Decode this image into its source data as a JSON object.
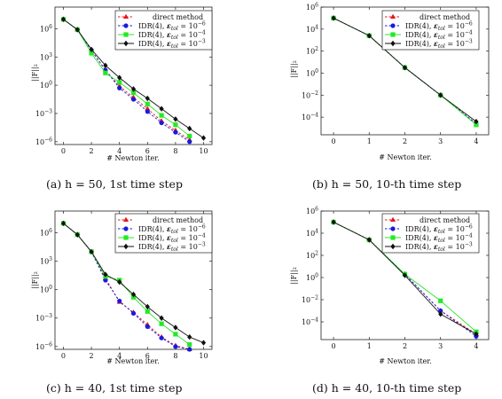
{
  "chart_data": [
    {
      "type": "line",
      "caption": "(a) h = 50, 1st time step",
      "xlabel": "# Newton iter.",
      "ylabel": "||F||₂",
      "yscale": "log",
      "xlim": [
        -0.6,
        10.6
      ],
      "ylim_exp": [
        -6.3,
        8.3
      ],
      "xticks": [
        0,
        2,
        4,
        6,
        8,
        10
      ],
      "yticks": [
        "10^-6",
        "10^-3",
        "10^0",
        "10^3",
        "10^6"
      ],
      "legend_position": "top-right",
      "series": [
        {
          "name": "direct method",
          "x": [
            0,
            1,
            2,
            3,
            4,
            5,
            6,
            7,
            8,
            9
          ],
          "log10_y": [
            7.0,
            5.9,
            3.7,
            1.6,
            -0.1,
            -1.3,
            -2.5,
            -3.8,
            -4.8,
            -5.8
          ]
        },
        {
          "name": "IDR(4), ε_tol = 10^-6",
          "x": [
            0,
            1,
            2,
            3,
            4,
            5,
            6,
            7,
            8,
            9
          ],
          "log10_y": [
            7.0,
            5.9,
            3.7,
            1.6,
            -0.3,
            -1.5,
            -2.8,
            -4.0,
            -5.0,
            -6.0
          ]
        },
        {
          "name": "IDR(4), ε_tol = 10^-4",
          "x": [
            0,
            1,
            2,
            3,
            4,
            5,
            6,
            7,
            8,
            9
          ],
          "log10_y": [
            7.0,
            5.9,
            3.4,
            1.3,
            0.3,
            -0.8,
            -2.0,
            -3.2,
            -4.2,
            -5.4
          ]
        },
        {
          "name": "IDR(4), ε_tol = 10^-3",
          "x": [
            0,
            1,
            2,
            3,
            4,
            5,
            6,
            7,
            8,
            9,
            10
          ],
          "log10_y": [
            7.0,
            5.9,
            3.8,
            2.1,
            0.8,
            -0.4,
            -1.4,
            -2.5,
            -3.6,
            -4.6,
            -5.6
          ]
        }
      ]
    },
    {
      "type": "line",
      "caption": "(b) h = 50, 10-th time step",
      "xlabel": "# Newton iter.",
      "ylabel": "||F||₂",
      "yscale": "log",
      "xlim": [
        -0.35,
        4.35
      ],
      "ylim_exp": [
        -5.6,
        6.0
      ],
      "xticks": [
        0,
        1,
        2,
        3,
        4
      ],
      "yticks": [
        "10^-4",
        "10^-2",
        "10^0",
        "10^2",
        "10^4",
        "10^6"
      ],
      "legend_position": "top-right",
      "series": [
        {
          "name": "direct method",
          "x": [
            0,
            1,
            2,
            3,
            4
          ],
          "log10_y": [
            5.0,
            3.4,
            0.5,
            -2.0,
            -4.6
          ]
        },
        {
          "name": "IDR(4), ε_tol = 10^-6",
          "x": [
            0,
            1,
            2,
            3,
            4
          ],
          "log10_y": [
            5.0,
            3.4,
            0.5,
            -2.0,
            -4.6
          ]
        },
        {
          "name": "IDR(4), ε_tol = 10^-4",
          "x": [
            0,
            1,
            2,
            3,
            4
          ],
          "log10_y": [
            5.0,
            3.4,
            0.5,
            -2.0,
            -4.7
          ]
        },
        {
          "name": "IDR(4), ε_tol = 10^-3",
          "x": [
            0,
            1,
            2,
            3,
            4
          ],
          "log10_y": [
            5.0,
            3.4,
            0.5,
            -2.0,
            -4.4
          ]
        }
      ]
    },
    {
      "type": "line",
      "caption": "(c) h = 40, 1st time step",
      "xlabel": "# Newton iter.",
      "ylabel": "||F||₂",
      "yscale": "log",
      "xlim": [
        -0.6,
        10.6
      ],
      "ylim_exp": [
        -6.3,
        8.3
      ],
      "xticks": [
        0,
        2,
        4,
        6,
        8,
        10
      ],
      "yticks": [
        "10^-6",
        "10^-3",
        "10^0",
        "10^3",
        "10^6"
      ],
      "legend_position": "top-right",
      "series": [
        {
          "name": "direct method",
          "x": [
            0,
            1,
            2,
            3,
            4,
            5,
            6,
            7,
            8,
            9
          ],
          "log10_y": [
            7.0,
            5.8,
            4.0,
            1.2,
            -1.3,
            -2.4,
            -3.7,
            -5.0,
            -5.9,
            -6.3
          ]
        },
        {
          "name": "IDR(4), ε_tol = 10^-6",
          "x": [
            0,
            1,
            2,
            3,
            4,
            5,
            6,
            7,
            8,
            9
          ],
          "log10_y": [
            7.0,
            5.8,
            4.0,
            1.0,
            -1.2,
            -2.5,
            -3.9,
            -5.1,
            -6.0,
            -6.3
          ]
        },
        {
          "name": "IDR(4), ε_tol = 10^-4",
          "x": [
            0,
            1,
            2,
            3,
            4,
            5,
            6,
            7,
            8,
            9
          ],
          "log10_y": [
            7.0,
            5.8,
            4.0,
            1.4,
            1.0,
            -0.8,
            -2.3,
            -3.6,
            -4.7,
            -5.8
          ]
        },
        {
          "name": "IDR(4), ε_tol = 10^-3",
          "x": [
            0,
            1,
            2,
            3,
            4,
            5,
            6,
            7,
            8,
            9,
            10
          ],
          "log10_y": [
            7.0,
            5.8,
            4.0,
            1.6,
            0.8,
            -0.5,
            -1.8,
            -3.0,
            -4.0,
            -5.0,
            -5.6
          ]
        }
      ]
    },
    {
      "type": "line",
      "caption": "(d) h = 40, 10-th time step",
      "xlabel": "# Newton iter.",
      "ylabel": "||F||₂",
      "yscale": "log",
      "xlim": [
        -0.35,
        4.35
      ],
      "ylim_exp": [
        -5.6,
        6.0
      ],
      "xticks": [
        0,
        1,
        2,
        3,
        4
      ],
      "yticks": [
        "10^-4",
        "10^-2",
        "10^0",
        "10^2",
        "10^4",
        "10^6"
      ],
      "legend_position": "top-right",
      "series": [
        {
          "name": "direct method",
          "x": [
            0,
            1,
            2,
            3,
            4
          ],
          "log10_y": [
            5.0,
            3.4,
            0.3,
            -3.0,
            -5.1
          ]
        },
        {
          "name": "IDR(4), ε_tol = 10^-6",
          "x": [
            0,
            1,
            2,
            3,
            4
          ],
          "log10_y": [
            5.0,
            3.4,
            0.3,
            -3.0,
            -5.3
          ]
        },
        {
          "name": "IDR(4), ε_tol = 10^-4",
          "x": [
            0,
            1,
            2,
            3,
            4
          ],
          "log10_y": [
            5.0,
            3.4,
            0.3,
            -2.1,
            -4.9
          ]
        },
        {
          "name": "IDR(4), ε_tol = 10^-3",
          "x": [
            0,
            1,
            2,
            3,
            4
          ],
          "log10_y": [
            5.0,
            3.4,
            0.2,
            -3.3,
            -5.1
          ]
        }
      ]
    }
  ],
  "style": {
    "series_colors": [
      "#e8141a",
      "#1a1adf",
      "#25e825",
      "#111111"
    ],
    "series_markers": [
      "triangle",
      "circle",
      "square",
      "diamond"
    ],
    "series_dash": [
      true,
      true,
      false,
      false
    ]
  }
}
